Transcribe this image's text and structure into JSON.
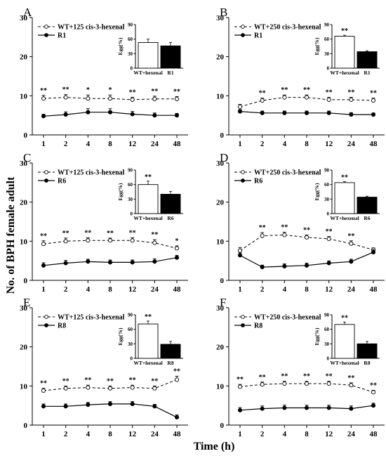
{
  "figure": {
    "ylabel": "No. of BPH female adult",
    "xlabel": "Time (h)"
  },
  "chart_data": [
    {
      "panel": "A",
      "type": "line",
      "x": [
        "1",
        "2",
        "4",
        "8",
        "12",
        "24",
        "48"
      ],
      "ylim": [
        0,
        30
      ],
      "yticks": [
        0,
        10,
        20,
        30
      ],
      "series": [
        {
          "name": "WT+125 cis-3-hexenal",
          "style": "dashed-open-circle",
          "values": [
            9.3,
            9.6,
            9.3,
            9.3,
            9.0,
            9.2,
            9.2
          ],
          "errors": [
            0.8,
            0.7,
            0.9,
            0.9,
            0.6,
            0.7,
            0.6
          ]
        },
        {
          "name": "R1",
          "style": "solid-filled-circle",
          "values": [
            4.8,
            5.2,
            5.8,
            5.8,
            5.3,
            5.0,
            5.0
          ],
          "errors": [
            0.5,
            0.7,
            0.9,
            0.9,
            0.7,
            0.6,
            0.5
          ]
        }
      ],
      "significance": [
        "**",
        "**",
        "*",
        "*",
        "**",
        "**",
        "**"
      ],
      "inset": {
        "type": "bar",
        "ylabel": "Egg(%)",
        "ylim": [
          0,
          90
        ],
        "yticks": [
          0,
          30,
          60,
          90
        ],
        "categories": [
          "WT+hexenal",
          "R1"
        ],
        "values": [
          53,
          46
        ],
        "errors": [
          7,
          7
        ],
        "colors": [
          "#ffffff",
          "#000000"
        ],
        "sig": ""
      }
    },
    {
      "panel": "B",
      "type": "line",
      "x": [
        "1",
        "2",
        "4",
        "8",
        "12",
        "24",
        "48"
      ],
      "ylim": [
        0,
        30
      ],
      "yticks": [
        0,
        10,
        20,
        30
      ],
      "series": [
        {
          "name": "WT+250 cis-3-hexenal",
          "style": "dashed-open-circle",
          "values": [
            7.2,
            8.8,
            9.6,
            9.6,
            9.0,
            9.0,
            8.8
          ],
          "errors": [
            0.6,
            0.6,
            0.6,
            0.6,
            0.6,
            0.6,
            0.6
          ]
        },
        {
          "name": "R1",
          "style": "solid-filled-circle",
          "values": [
            6.0,
            5.6,
            5.6,
            5.6,
            5.6,
            5.2,
            5.2
          ],
          "errors": [
            0.5,
            0.5,
            0.5,
            0.5,
            0.5,
            0.5,
            0.4
          ]
        }
      ],
      "significance": [
        "",
        "**",
        "**",
        "**",
        "**",
        "**",
        "**"
      ],
      "inset": {
        "type": "bar",
        "ylabel": "Egg(%)",
        "ylim": [
          0,
          90
        ],
        "yticks": [
          0,
          30,
          60,
          90
        ],
        "categories": [
          "WT+hexenal",
          "R1"
        ],
        "values": [
          66,
          34
        ],
        "errors": [
          2,
          2
        ],
        "colors": [
          "#ffffff",
          "#000000"
        ],
        "sig": "**"
      }
    },
    {
      "panel": "C",
      "type": "line",
      "x": [
        "1",
        "2",
        "4",
        "8",
        "12",
        "24",
        "48"
      ],
      "ylim": [
        0,
        30
      ],
      "yticks": [
        0,
        10,
        20,
        30
      ],
      "series": [
        {
          "name": "WT+125 cis-3-hexenal",
          "style": "dashed-open-circle",
          "values": [
            9.3,
            10.0,
            10.2,
            10.2,
            10.2,
            9.6,
            8.2
          ],
          "errors": [
            0.8,
            0.8,
            0.7,
            0.6,
            0.7,
            0.8,
            0.6
          ]
        },
        {
          "name": "R6",
          "style": "solid-filled-circle",
          "values": [
            3.8,
            4.4,
            4.8,
            4.6,
            4.6,
            4.8,
            5.8
          ],
          "errors": [
            0.7,
            0.7,
            0.6,
            0.6,
            0.6,
            0.7,
            0.6
          ]
        }
      ],
      "significance": [
        "**",
        "**",
        "**",
        "**",
        "**",
        "**",
        "*"
      ],
      "inset": {
        "type": "bar",
        "ylabel": "Egg(%)",
        "ylim": [
          0,
          90
        ],
        "yticks": [
          0,
          30,
          60,
          90
        ],
        "categories": [
          "WT+hexenal",
          "R6"
        ],
        "values": [
          60,
          40
        ],
        "errors": [
          7,
          6
        ],
        "colors": [
          "#ffffff",
          "#000000"
        ],
        "sig": "**"
      }
    },
    {
      "panel": "D",
      "type": "line",
      "x": [
        "1",
        "2",
        "4",
        "8",
        "12",
        "24",
        "48"
      ],
      "ylim": [
        0,
        30
      ],
      "yticks": [
        0,
        10,
        20,
        30
      ],
      "series": [
        {
          "name": "WT+250 cis-3-hexenal",
          "style": "dashed-open-circle",
          "values": [
            7.6,
            11.4,
            11.6,
            11.0,
            10.6,
            9.4,
            7.8
          ],
          "errors": [
            0.8,
            0.8,
            0.7,
            0.6,
            0.6,
            0.7,
            0.5
          ]
        },
        {
          "name": "R6",
          "style": "solid-filled-circle",
          "values": [
            6.4,
            3.4,
            3.6,
            3.8,
            4.4,
            4.8,
            7.2
          ],
          "errors": [
            0.6,
            0.5,
            0.6,
            0.6,
            0.6,
            0.6,
            0.6
          ]
        }
      ],
      "significance": [
        "",
        "**",
        "**",
        "**",
        "**",
        "**",
        ""
      ],
      "inset": {
        "type": "bar",
        "ylabel": "Egg(%)",
        "ylim": [
          0,
          90
        ],
        "yticks": [
          0,
          30,
          60,
          90
        ],
        "categories": [
          "WT+hexenal",
          "R6"
        ],
        "values": [
          64,
          34
        ],
        "errors": [
          2,
          2
        ],
        "colors": [
          "#ffffff",
          "#000000"
        ],
        "sig": "**"
      }
    },
    {
      "panel": "E",
      "type": "line",
      "x": [
        "1",
        "2",
        "4",
        "8",
        "12",
        "24",
        "48"
      ],
      "ylim": [
        0,
        30
      ],
      "yticks": [
        0,
        10,
        20,
        30
      ],
      "series": [
        {
          "name": "WT+125 cis-3-hexenal",
          "style": "dashed-open-circle",
          "values": [
            8.8,
            9.4,
            9.6,
            9.4,
            9.6,
            9.4,
            11.6
          ],
          "errors": [
            0.6,
            0.6,
            0.6,
            0.6,
            0.6,
            0.6,
            0.9
          ]
        },
        {
          "name": "R8",
          "style": "solid-filled-circle",
          "values": [
            4.8,
            4.8,
            5.2,
            5.4,
            5.4,
            4.8,
            2.0
          ],
          "errors": [
            0.6,
            0.6,
            0.6,
            0.6,
            0.6,
            0.5,
            0.6
          ]
        }
      ],
      "significance": [
        "**",
        "**",
        "**",
        "**",
        "**",
        "**",
        "**"
      ],
      "inset": {
        "type": "bar",
        "ylabel": "Egg(%)",
        "ylim": [
          0,
          90
        ],
        "yticks": [
          0,
          30,
          60,
          90
        ],
        "categories": [
          "WT+hexenal",
          "R8"
        ],
        "values": [
          71,
          29
        ],
        "errors": [
          6,
          6
        ],
        "colors": [
          "#ffffff",
          "#000000"
        ],
        "sig": "**"
      }
    },
    {
      "panel": "F",
      "type": "line",
      "x": [
        "1",
        "2",
        "4",
        "8",
        "12",
        "24",
        "48"
      ],
      "ylim": [
        0,
        30
      ],
      "yticks": [
        0,
        10,
        20,
        30
      ],
      "series": [
        {
          "name": "WT+250 cis-3-hexenal",
          "style": "dashed-open-circle",
          "values": [
            9.8,
            10.4,
            10.6,
            10.6,
            10.6,
            10.2,
            8.4
          ],
          "errors": [
            0.6,
            0.6,
            0.6,
            0.6,
            0.6,
            0.6,
            0.5
          ]
        },
        {
          "name": "R8",
          "style": "solid-filled-circle",
          "values": [
            3.8,
            4.2,
            4.4,
            4.4,
            4.4,
            4.2,
            5.0
          ],
          "errors": [
            0.7,
            0.7,
            0.7,
            0.7,
            0.7,
            0.7,
            0.6
          ]
        }
      ],
      "significance": [
        "**",
        "**",
        "**",
        "**",
        "**",
        "**",
        "**"
      ],
      "inset": {
        "type": "bar",
        "ylabel": "Egg(%)",
        "ylim": [
          0,
          90
        ],
        "yticks": [
          0,
          30,
          60,
          90
        ],
        "categories": [
          "WT+hexenal",
          "R8"
        ],
        "values": [
          70,
          30
        ],
        "errors": [
          5,
          5
        ],
        "colors": [
          "#ffffff",
          "#000000"
        ],
        "sig": "**"
      }
    }
  ]
}
